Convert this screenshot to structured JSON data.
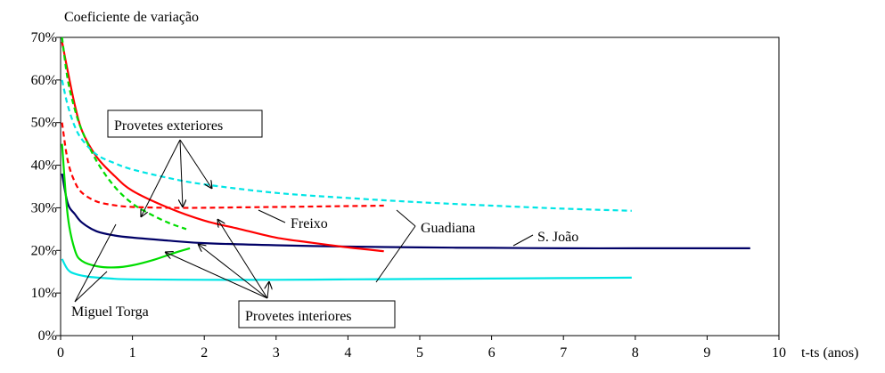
{
  "chart_data": {
    "type": "line",
    "ylabel": "Coeficiente de variação",
    "xlabel": "t-ts (anos)",
    "xlim": [
      0,
      10
    ],
    "ylim": [
      0,
      70
    ],
    "xticks": [
      "0",
      "1",
      "2",
      "3",
      "4",
      "5",
      "6",
      "7",
      "8",
      "9",
      "10"
    ],
    "yticks": [
      "0%",
      "10%",
      "20%",
      "30%",
      "40%",
      "50%",
      "60%",
      "70%"
    ],
    "grid": false,
    "series": [
      {
        "name": "S. João",
        "group": "Provetes interiores",
        "color": "#000066",
        "style": "solid",
        "x": [
          0.02,
          0.1,
          0.2,
          0.3,
          0.5,
          0.75,
          1,
          1.5,
          2,
          3,
          4,
          5,
          6,
          7,
          8,
          9,
          9.6
        ],
        "y": [
          38,
          31,
          28.5,
          26.5,
          24.5,
          23.5,
          23,
          22.3,
          21.7,
          21.2,
          20.9,
          20.7,
          20.6,
          20.5,
          20.5,
          20.5,
          20.5
        ]
      },
      {
        "name": "Guadiana",
        "group": "Provetes interiores",
        "color": "#00e5e5",
        "style": "solid",
        "x": [
          0.02,
          0.1,
          0.2,
          0.4,
          0.7,
          1,
          2,
          3,
          4,
          5,
          6,
          7,
          7.95
        ],
        "y": [
          18,
          15.5,
          14.5,
          13.8,
          13.4,
          13.2,
          13.1,
          13.1,
          13.2,
          13.3,
          13.4,
          13.5,
          13.6
        ]
      },
      {
        "name": "Freixo",
        "group": "Provetes interiores",
        "color": "#ff0000",
        "style": "solid",
        "x": [
          0.02,
          0.1,
          0.2,
          0.3,
          0.5,
          0.75,
          1,
          1.5,
          2,
          2.5,
          3,
          3.5,
          4,
          4.5
        ],
        "y": [
          69,
          62,
          54,
          48,
          42,
          37.5,
          34,
          30,
          27,
          25,
          23,
          21.8,
          20.7,
          19.8
        ]
      },
      {
        "name": "Miguel Torga",
        "group": "Provetes interiores",
        "color": "#00dd00",
        "style": "solid",
        "x": [
          0.02,
          0.1,
          0.2,
          0.3,
          0.5,
          0.75,
          1,
          1.3,
          1.6,
          1.8
        ],
        "y": [
          45,
          28,
          20,
          17.5,
          16.3,
          16,
          16.5,
          17.8,
          19.5,
          20.5
        ]
      },
      {
        "name": "Guadiana",
        "group": "Provetes exteriores",
        "color": "#00e5e5",
        "style": "dashed",
        "x": [
          0.02,
          0.1,
          0.2,
          0.3,
          0.5,
          0.75,
          1,
          1.5,
          2,
          3,
          4,
          5,
          6,
          7,
          7.95
        ],
        "y": [
          60,
          54,
          49,
          46,
          42.5,
          40.5,
          39,
          37,
          35.5,
          33.5,
          32.3,
          31.3,
          30.5,
          29.8,
          29.3
        ]
      },
      {
        "name": "Freixo",
        "group": "Provetes exteriores",
        "color": "#ff0000",
        "style": "dashed",
        "x": [
          0.02,
          0.1,
          0.2,
          0.3,
          0.5,
          0.75,
          1,
          1.5,
          2,
          2.5,
          3,
          3.5,
          4,
          4.5
        ],
        "y": [
          50,
          41,
          36,
          33.5,
          31.5,
          30.6,
          30.2,
          30,
          30,
          30.1,
          30.2,
          30.3,
          30.4,
          30.5
        ]
      },
      {
        "name": "Miguel Torga",
        "group": "Provetes exteriores",
        "color": "#00dd00",
        "style": "dashed",
        "x": [
          0.02,
          0.1,
          0.2,
          0.3,
          0.5,
          0.75,
          1,
          1.25,
          1.5,
          1.75
        ],
        "y": [
          70,
          60,
          53,
          48,
          41,
          35,
          31,
          28.5,
          26.5,
          25
        ]
      }
    ],
    "annotations": [
      {
        "text": "Provetes exteriores",
        "boxed": true
      },
      {
        "text": "Provetes interiores",
        "boxed": true
      },
      {
        "text": "Freixo"
      },
      {
        "text": "Guadiana"
      },
      {
        "text": "S. João"
      },
      {
        "text": "Miguel Torga"
      }
    ]
  }
}
